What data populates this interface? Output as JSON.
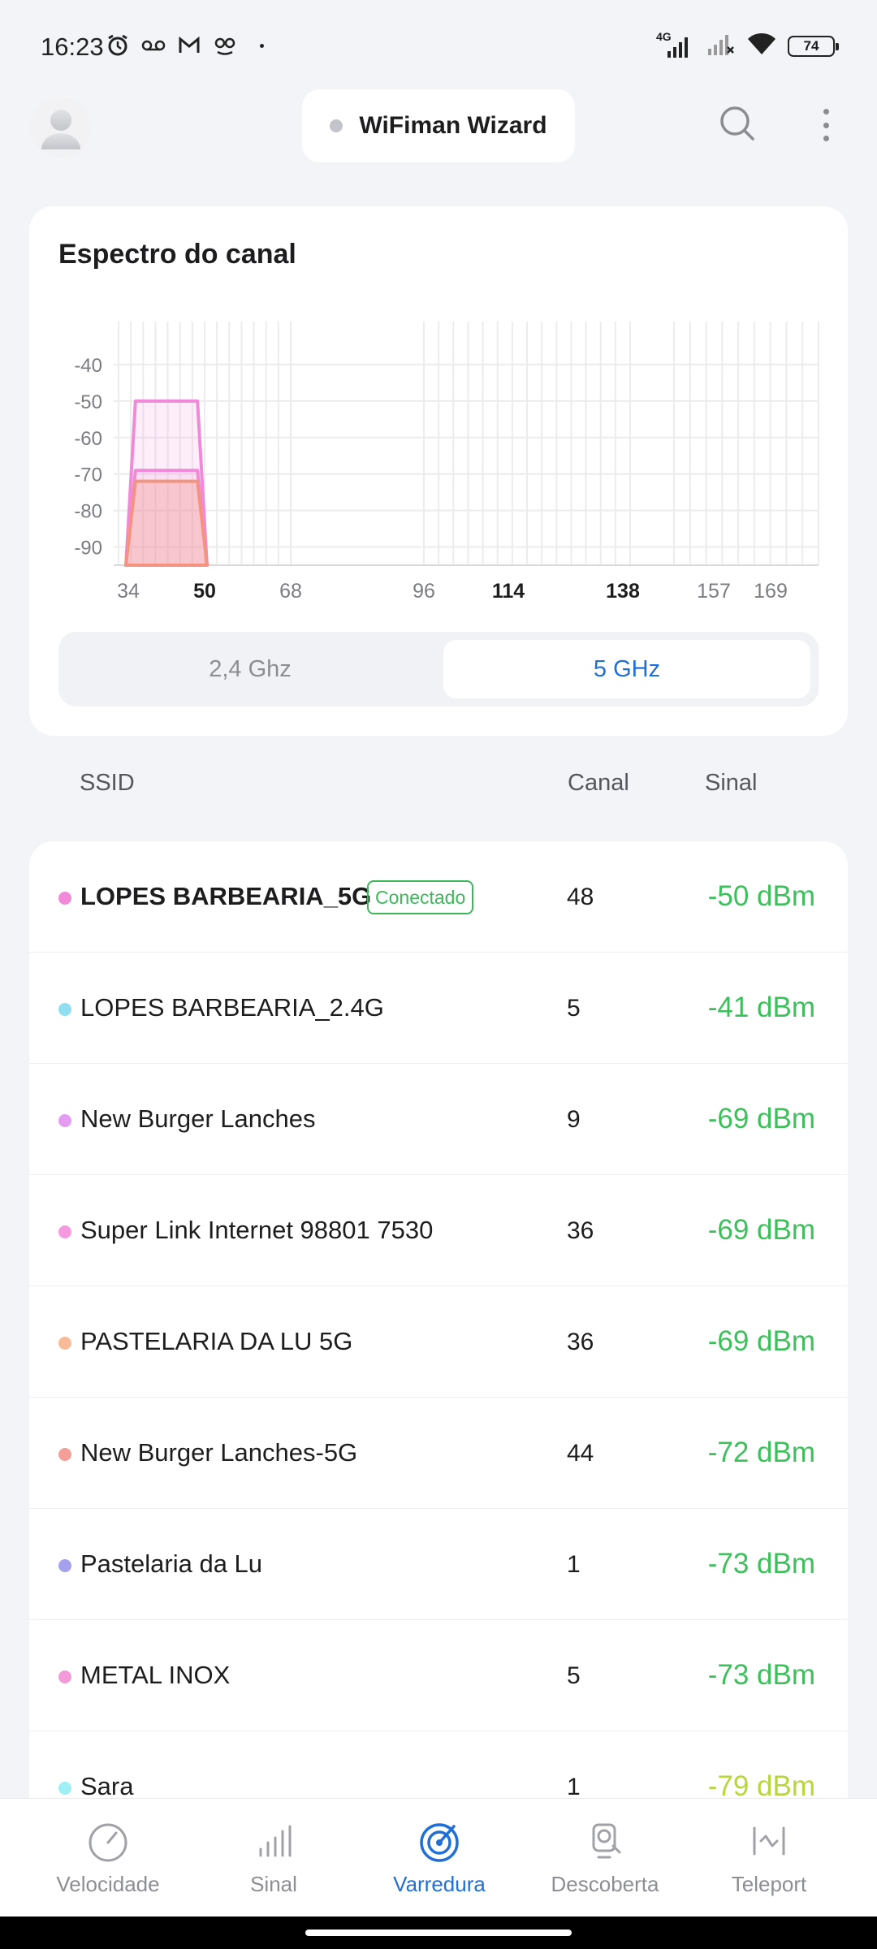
{
  "status_bar": {
    "time": "16:23",
    "network": "4G",
    "battery": "74"
  },
  "header": {
    "title": "WiFiman Wizard"
  },
  "spectrum": {
    "title": "Espectro do canal",
    "bands": {
      "inactive": "2,4 Ghz",
      "active": "5 GHz"
    }
  },
  "chart_data": {
    "type": "area",
    "y_ticks": [
      "-40",
      "-50",
      "-60",
      "-70",
      "-80",
      "-90"
    ],
    "x_ticks": [
      {
        "label": "34",
        "bold": false
      },
      {
        "label": "50",
        "bold": true
      },
      {
        "label": "68",
        "bold": false
      },
      {
        "label": "96",
        "bold": false
      },
      {
        "label": "114",
        "bold": true
      },
      {
        "label": "138",
        "bold": true
      },
      {
        "label": "157",
        "bold": false
      },
      {
        "label": "169",
        "bold": false
      }
    ],
    "ylim": [
      -95,
      -30
    ],
    "grid": true,
    "series": [
      {
        "color": "#f08ad8",
        "x_from": 36,
        "x_to": 48,
        "peak": -50
      },
      {
        "color": "#f08ad8",
        "x_from": 36,
        "x_to": 48,
        "peak": -69
      },
      {
        "color": "#f4937f",
        "x_from": 36,
        "x_to": 48,
        "peak": -72
      }
    ]
  },
  "list": {
    "headers": {
      "ssid": "SSID",
      "channel": "Canal",
      "signal": "Sinal"
    },
    "rows": [
      {
        "ssid": "LOPES BARBEARIA_5G",
        "badge": "Conectado",
        "channel": "48",
        "signal": "-50 dBm",
        "dot": "#f08ad8",
        "sigcolor": "#3dbf5c"
      },
      {
        "ssid": "LOPES BARBEARIA_2.4G",
        "channel": "5",
        "signal": "-41 dBm",
        "dot": "#8fdff0",
        "sigcolor": "#3dbf5c"
      },
      {
        "ssid": "New Burger Lanches",
        "channel": "9",
        "signal": "-69 dBm",
        "dot": "#e49bf2",
        "sigcolor": "#3dbf5c"
      },
      {
        "ssid": "Super Link Internet 98801 7530",
        "channel": "36",
        "signal": "-69 dBm",
        "dot": "#f59ae0",
        "sigcolor": "#3dbf5c"
      },
      {
        "ssid": "PASTELARIA DA LU 5G",
        "channel": "36",
        "signal": "-69 dBm",
        "dot": "#f7bb98",
        "sigcolor": "#3dbf5c"
      },
      {
        "ssid": "New Burger Lanches-5G",
        "channel": "44",
        "signal": "-72 dBm",
        "dot": "#f39f98",
        "sigcolor": "#3dbf5c"
      },
      {
        "ssid": "Pastelaria da Lu",
        "channel": "1",
        "signal": "-73 dBm",
        "dot": "#a4a0ee",
        "sigcolor": "#3dbf5c"
      },
      {
        "ssid": "METAL INOX",
        "channel": "5",
        "signal": "-73 dBm",
        "dot": "#f59ad9",
        "sigcolor": "#3dbf5c"
      },
      {
        "ssid": "Sara",
        "channel": "1",
        "signal": "-79 dBm",
        "dot": "#9ef0f4",
        "sigcolor": "#b6d63c"
      }
    ]
  },
  "nav": [
    {
      "label": "Velocidade",
      "icon": "speedometer-icon"
    },
    {
      "label": "Sinal",
      "icon": "signal-bars-icon"
    },
    {
      "label": "Varredura",
      "icon": "radar-icon",
      "active": true
    },
    {
      "label": "Descoberta",
      "icon": "discovery-icon"
    },
    {
      "label": "Teleport",
      "icon": "teleport-icon"
    }
  ],
  "colors": {
    "accent": "#1f6fd6",
    "signal_good": "#3dbf5c",
    "signal_fair": "#b6d63c",
    "connected": "#3cb85a"
  }
}
